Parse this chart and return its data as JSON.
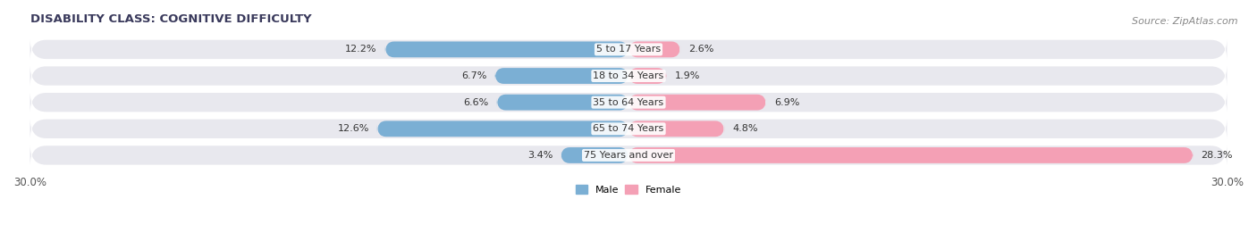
{
  "title": "DISABILITY CLASS: COGNITIVE DIFFICULTY",
  "source": "Source: ZipAtlas.com",
  "categories": [
    "5 to 17 Years",
    "18 to 34 Years",
    "35 to 64 Years",
    "65 to 74 Years",
    "75 Years and over"
  ],
  "male_values": [
    12.2,
    6.7,
    6.6,
    12.6,
    3.4
  ],
  "female_values": [
    2.6,
    1.9,
    6.9,
    4.8,
    28.3
  ],
  "male_color": "#7bafd4",
  "female_color": "#f4a0b5",
  "bar_bg_color": "#e8e8ee",
  "xlim": 30.0,
  "legend_male": "Male",
  "legend_female": "Female",
  "title_fontsize": 9.5,
  "source_fontsize": 8,
  "label_fontsize": 8,
  "tick_fontsize": 8.5
}
